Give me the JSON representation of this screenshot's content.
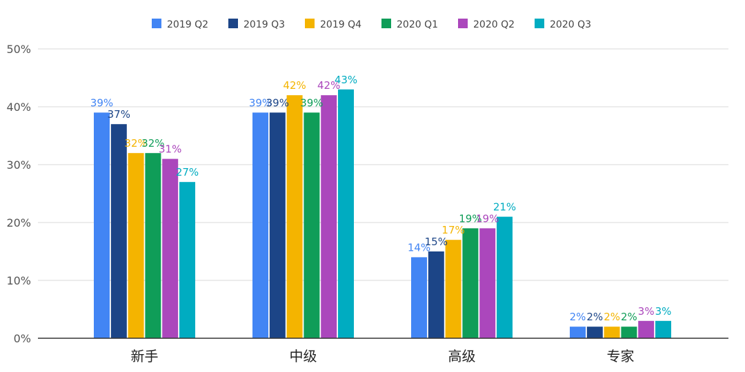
{
  "chart_data": {
    "type": "bar",
    "title": "",
    "xlabel": "",
    "ylabel": "",
    "ylim": [
      0,
      50
    ],
    "yticks": [
      "0%",
      "10%",
      "20%",
      "30%",
      "40%",
      "50%"
    ],
    "ytick_values": [
      0,
      10,
      20,
      30,
      40,
      50
    ],
    "grid": true,
    "legend_position": "top-center",
    "categories": [
      "新手",
      "中级",
      "高级",
      "专家"
    ],
    "series": [
      {
        "name": "2019 Q2",
        "color": "#4285F4",
        "values": [
          39,
          39,
          14,
          2
        ],
        "labels": [
          "39%",
          "39%",
          "14%",
          "2%"
        ]
      },
      {
        "name": "2019 Q3",
        "color": "#1C4587",
        "values": [
          37,
          39,
          15,
          2
        ],
        "labels": [
          "37%",
          "39%",
          "15%",
          "2%"
        ]
      },
      {
        "name": "2019 Q4",
        "color": "#F4B400",
        "values": [
          32,
          42,
          17,
          2
        ],
        "labels": [
          "32%",
          "42%",
          "17%",
          "2%"
        ]
      },
      {
        "name": "2020 Q1",
        "color": "#0F9D58",
        "values": [
          32,
          39,
          19,
          2
        ],
        "labels": [
          "32%",
          "39%",
          "19%",
          "2%"
        ]
      },
      {
        "name": "2020 Q2",
        "color": "#AB47BC",
        "values": [
          31,
          42,
          19,
          3
        ],
        "labels": [
          "31%",
          "42%",
          "19%",
          "3%"
        ]
      },
      {
        "name": "2020 Q3",
        "color": "#00ACC1",
        "values": [
          27,
          43,
          21,
          3
        ],
        "labels": [
          "27%",
          "43%",
          "21%",
          "3%"
        ]
      }
    ]
  }
}
